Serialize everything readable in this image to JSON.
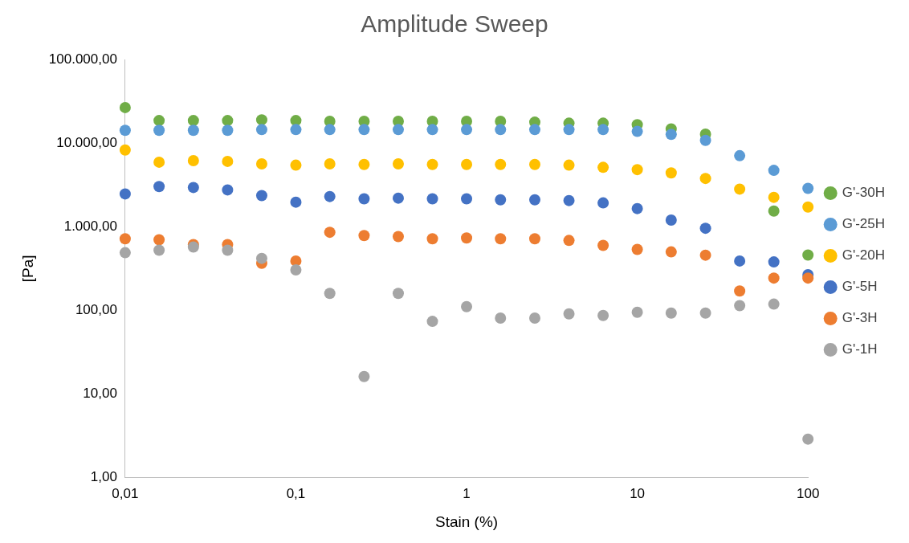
{
  "chart_data": {
    "type": "scatter",
    "title": "Amplitude Sweep",
    "xlabel": "Stain (%)",
    "ylabel": "[Pa]",
    "log": "xy",
    "grid": false,
    "legend": "right",
    "marker": "circle",
    "x": [
      0.01,
      0.0158,
      0.0251,
      0.0398,
      0.0631,
      0.1,
      0.158,
      0.251,
      0.398,
      0.631,
      1,
      1.58,
      2.51,
      3.98,
      6.31,
      10,
      15.8,
      25.1,
      39.8,
      63.1,
      100
    ],
    "xlim": [
      0.01,
      100
    ],
    "xticks": [
      {
        "value": 0.01,
        "label": "0,01"
      },
      {
        "value": 0.1,
        "label": "0,1"
      },
      1,
      10,
      100
    ],
    "ylim": [
      1,
      100000
    ],
    "yticks": [
      {
        "value": 1,
        "label": "1,00"
      },
      {
        "value": 10,
        "label": "10,00"
      },
      {
        "value": 100,
        "label": "100,00"
      },
      {
        "value": 1000,
        "label": "1.000,00"
      },
      {
        "value": 10000,
        "label": "10.000,00"
      },
      {
        "value": 100000,
        "label": "100.000,00"
      }
    ],
    "series": [
      {
        "name": "G'-30H",
        "color": "#70ad47",
        "values": [
          26600,
          18600,
          18600,
          18600,
          19000,
          18600,
          18200,
          18200,
          18200,
          18200,
          18200,
          18200,
          17800,
          17300,
          17300,
          16600,
          14800,
          12800,
          null,
          1540,
          460
        ]
      },
      {
        "name": "G'-25H",
        "color": "#5b9bd5",
        "values": [
          14200,
          14200,
          14200,
          14200,
          14500,
          14500,
          14500,
          14500,
          14500,
          14500,
          14500,
          14500,
          14500,
          14500,
          14500,
          13800,
          12700,
          10800,
          7070,
          4720,
          2880
        ]
      },
      {
        "name": "G'-20H",
        "color": "#ffc000",
        "values": [
          8280,
          5920,
          6180,
          6050,
          5650,
          5450,
          5650,
          5550,
          5650,
          5550,
          5550,
          5550,
          5550,
          5450,
          5130,
          4820,
          4410,
          3780,
          2820,
          2250,
          1720
        ]
      },
      {
        "name": "G'-5H",
        "color": "#4472c4",
        "values": [
          2470,
          3020,
          2950,
          2760,
          2360,
          1970,
          2300,
          2160,
          2200,
          2160,
          2160,
          2100,
          2100,
          2060,
          1930,
          1650,
          1200,
          960,
          390,
          380,
          267
        ]
      },
      {
        "name": "G'-3H",
        "color": "#ed7d31",
        "values": [
          718,
          700,
          614,
          614,
          366,
          390,
          860,
          785,
          765,
          718,
          735,
          718,
          718,
          686,
          600,
          536,
          501,
          458,
          171,
          244,
          244
        ]
      },
      {
        "name": "G'-1H",
        "color": "#a5a5a5",
        "values": [
          490,
          524,
          573,
          524,
          419,
          305,
          160,
          16.2,
          160,
          74,
          111,
          81,
          81,
          91,
          87,
          95,
          93,
          93,
          114,
          119,
          2.9
        ]
      }
    ]
  }
}
